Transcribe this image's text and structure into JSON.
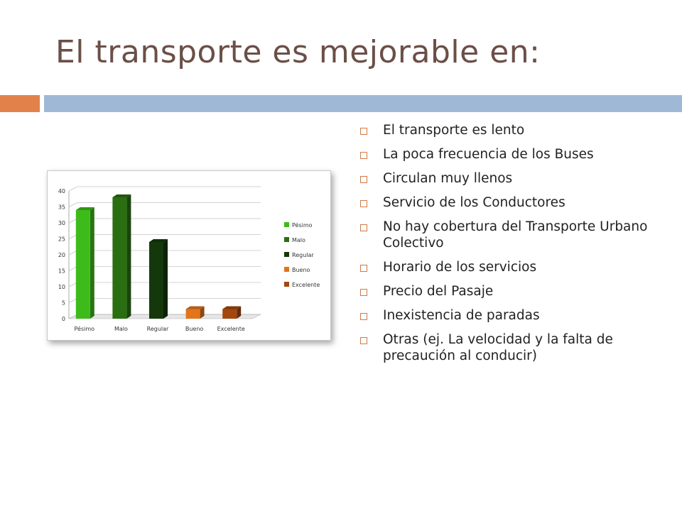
{
  "slide": {
    "title": "El transporte es mejorable en:"
  },
  "bullets": [
    "El transporte es lento",
    "La poca frecuencia de los Buses",
    "Circulan muy llenos",
    "Servicio de los Conductores",
    "No hay cobertura del Transporte Urbano Colectivo",
    "Horario de los servicios",
    "Precio del Pasaje",
    "Inexistencia de paradas",
    "Otras (ej. La velocidad y la falta de precaución al conducir)"
  ],
  "colors": {
    "accent_orange": "#e2824a",
    "accent_blue": "#9fb8d6",
    "title_color": "#6b4f47"
  },
  "chart_data": {
    "type": "bar",
    "style": "3d",
    "categories": [
      "Pésimo",
      "Malo",
      "Regular",
      "Bueno",
      "Excelente"
    ],
    "values": [
      34,
      38,
      24,
      3,
      3
    ],
    "colors": [
      "#3dbb1a",
      "#2a6e12",
      "#14380c",
      "#e2741c",
      "#a3470f"
    ],
    "ylim": [
      0,
      40
    ],
    "yticks": [
      "0",
      "5",
      "10",
      "15",
      "20",
      "25",
      "30",
      "35",
      "40"
    ],
    "grid": true,
    "legend": {
      "position": "right",
      "entries": [
        "Pésimo",
        "Malo",
        "Regular",
        "Bueno",
        "Excelente"
      ]
    },
    "title": "",
    "xlabel": "",
    "ylabel": ""
  }
}
